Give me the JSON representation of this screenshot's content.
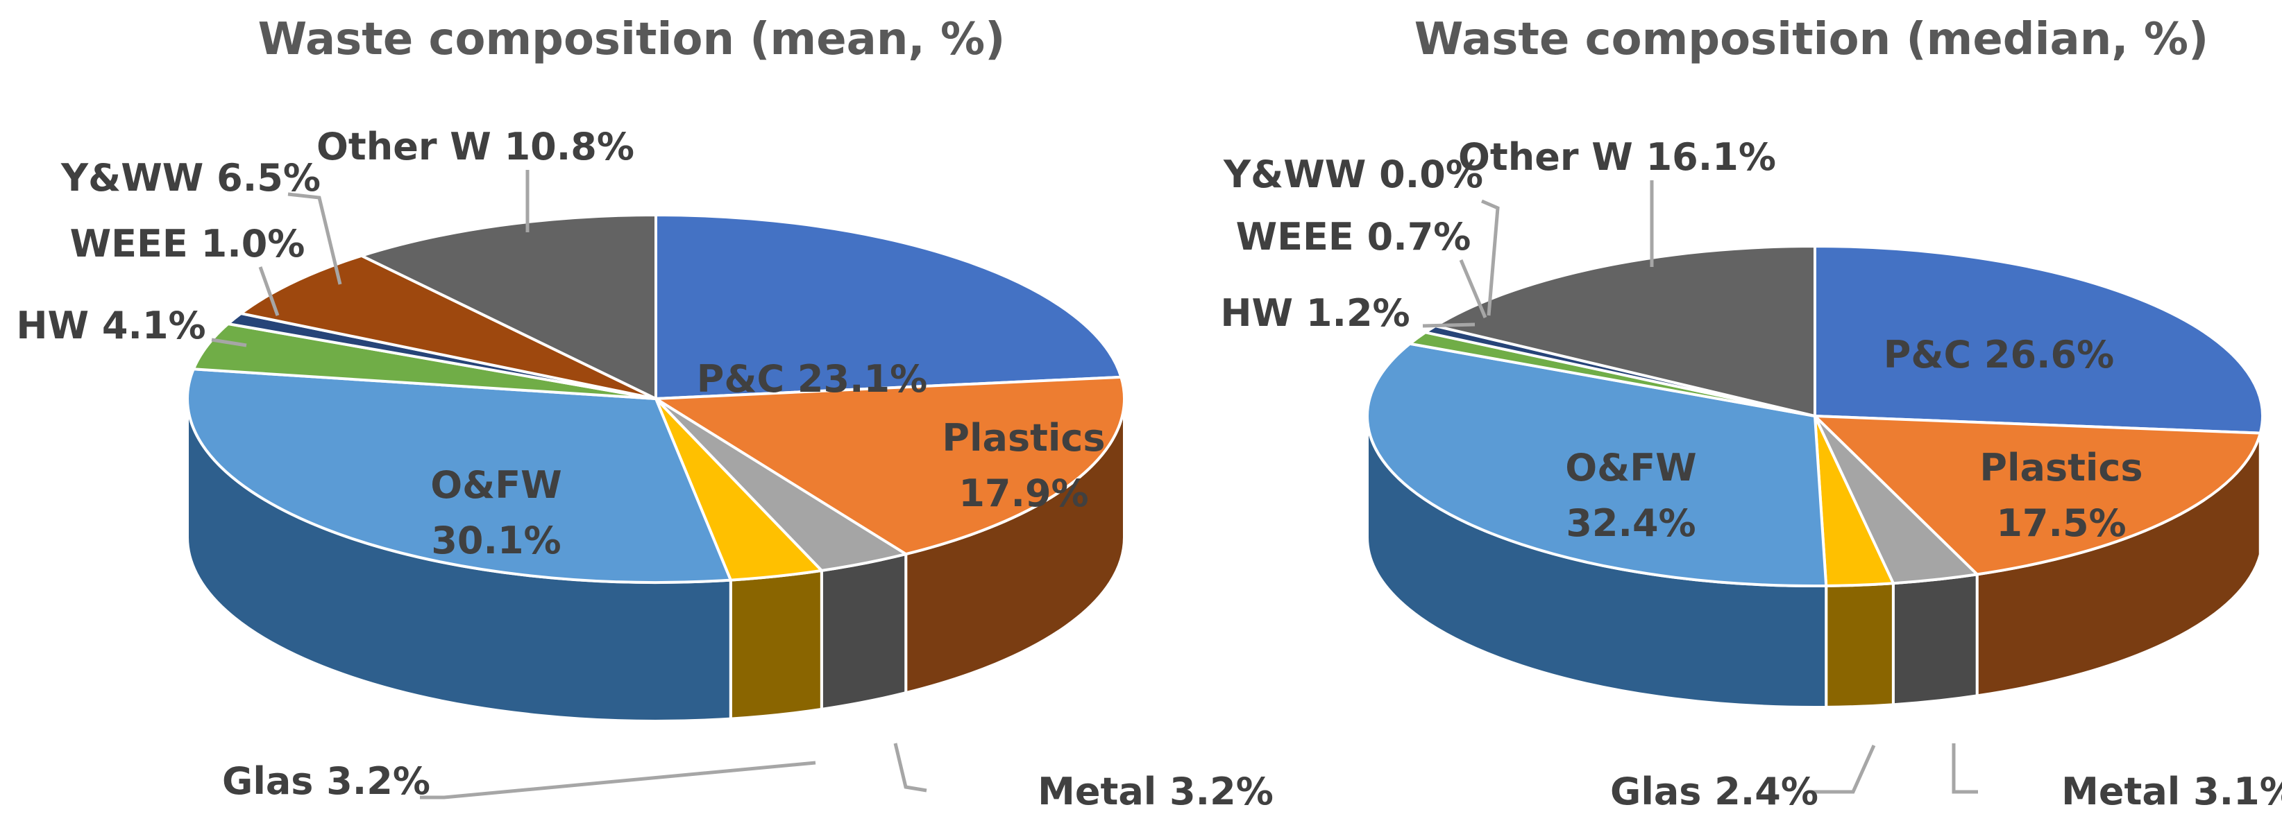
{
  "chart_data": [
    {
      "type": "pie",
      "title": "Waste composition (mean, %)",
      "slices": [
        {
          "name": "P&C",
          "value": 23.1,
          "label": "P&C 23.1%",
          "color": "#4472c4",
          "side": "#2e4f8a"
        },
        {
          "name": "Plastics",
          "value": 17.9,
          "label": "Plastics 17.9%",
          "color": "#ed7d31",
          "side": "#7a3d12"
        },
        {
          "name": "Metal",
          "value": 3.2,
          "label": "Metal 3.2%",
          "color": "#a5a5a5",
          "side": "#4a4a4a"
        },
        {
          "name": "Glas",
          "value": 3.2,
          "label": "Glas 3.2%",
          "color": "#ffc000",
          "side": "#8a6500"
        },
        {
          "name": "O&FW",
          "value": 30.1,
          "label": "O&FW 30.1%",
          "color": "#5b9bd5",
          "side": "#2e5f8d"
        },
        {
          "name": "HW",
          "value": 4.1,
          "label": "HW 4.1%",
          "color": "#70ad47",
          "side": "#3d6526"
        },
        {
          "name": "WEEE",
          "value": 1.0,
          "label": "WEEE 1.0%",
          "color": "#264478",
          "side": "#152a4d"
        },
        {
          "name": "Y&WW",
          "value": 6.5,
          "label": "Y&WW 6.5%",
          "color": "#9e480e",
          "side": "#5a2707"
        },
        {
          "name": "Other W",
          "value": 10.8,
          "label": "Other W 10.8%",
          "color": "#636363",
          "side": "#3a3a3a"
        }
      ]
    },
    {
      "type": "pie",
      "title": "Waste composition (median, %)",
      "slices": [
        {
          "name": "P&C",
          "value": 26.6,
          "label": "P&C 26.6%",
          "color": "#4472c4",
          "side": "#2e4f8a"
        },
        {
          "name": "Plastics",
          "value": 17.5,
          "label": "Plastics 17.5%",
          "color": "#ed7d31",
          "side": "#7a3d12"
        },
        {
          "name": "Metal",
          "value": 3.1,
          "label": "Metal 3.1%",
          "color": "#a5a5a5",
          "side": "#4a4a4a"
        },
        {
          "name": "Glas",
          "value": 2.4,
          "label": "Glas 2.4%",
          "color": "#ffc000",
          "side": "#8a6500"
        },
        {
          "name": "O&FW",
          "value": 32.4,
          "label": "O&FW 32.4%",
          "color": "#5b9bd5",
          "side": "#2e5f8d"
        },
        {
          "name": "HW",
          "value": 1.2,
          "label": "HW 1.2%",
          "color": "#70ad47",
          "side": "#3d6526"
        },
        {
          "name": "WEEE",
          "value": 0.7,
          "label": "WEEE 0.7%",
          "color": "#264478",
          "side": "#152a4d"
        },
        {
          "name": "Y&WW",
          "value": 0.0,
          "label": "Y&WW 0.0%",
          "color": "#9e480e",
          "side": "#5a2707"
        },
        {
          "name": "Other W",
          "value": 16.1,
          "label": "Other W 16.1%",
          "color": "#636363",
          "side": "#3a3a3a"
        }
      ]
    }
  ]
}
